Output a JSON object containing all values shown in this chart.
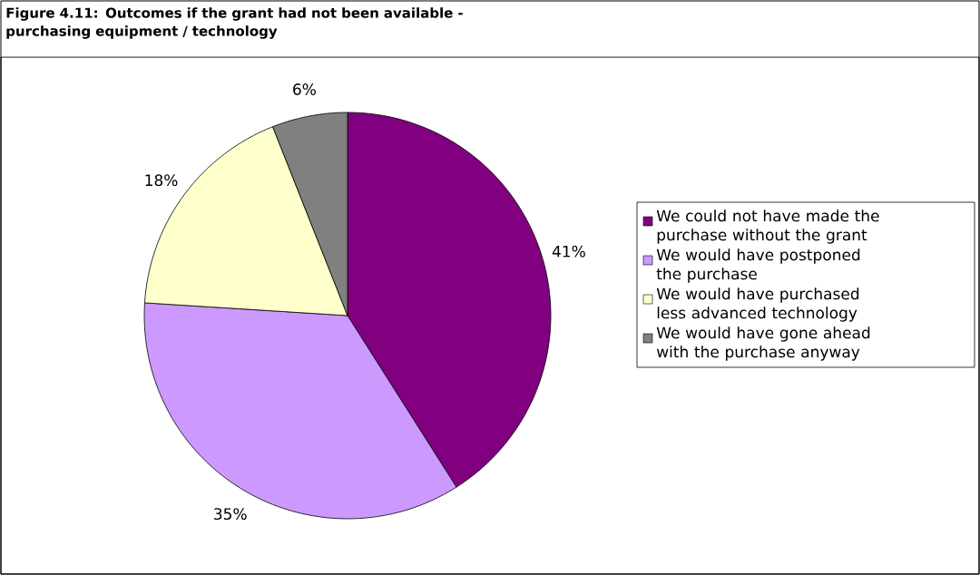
{
  "chart_data": {
    "type": "pie",
    "title": "Figure 4.11: Outcomes if the grant had not been available - purchasing equipment / technology",
    "categories": [
      "We could not have made the purchase without the grant",
      "We would have postponed the purchase",
      "We would have purchased less advanced technology",
      "We would have gone ahead with the purchase anyway"
    ],
    "values": [
      41,
      35,
      18,
      6
    ],
    "colors": [
      "#800080",
      "#cc99ff",
      "#ffffcc",
      "#808080"
    ],
    "value_labels": [
      "41%",
      "35%",
      "18%",
      "6%"
    ],
    "legend": "right"
  }
}
